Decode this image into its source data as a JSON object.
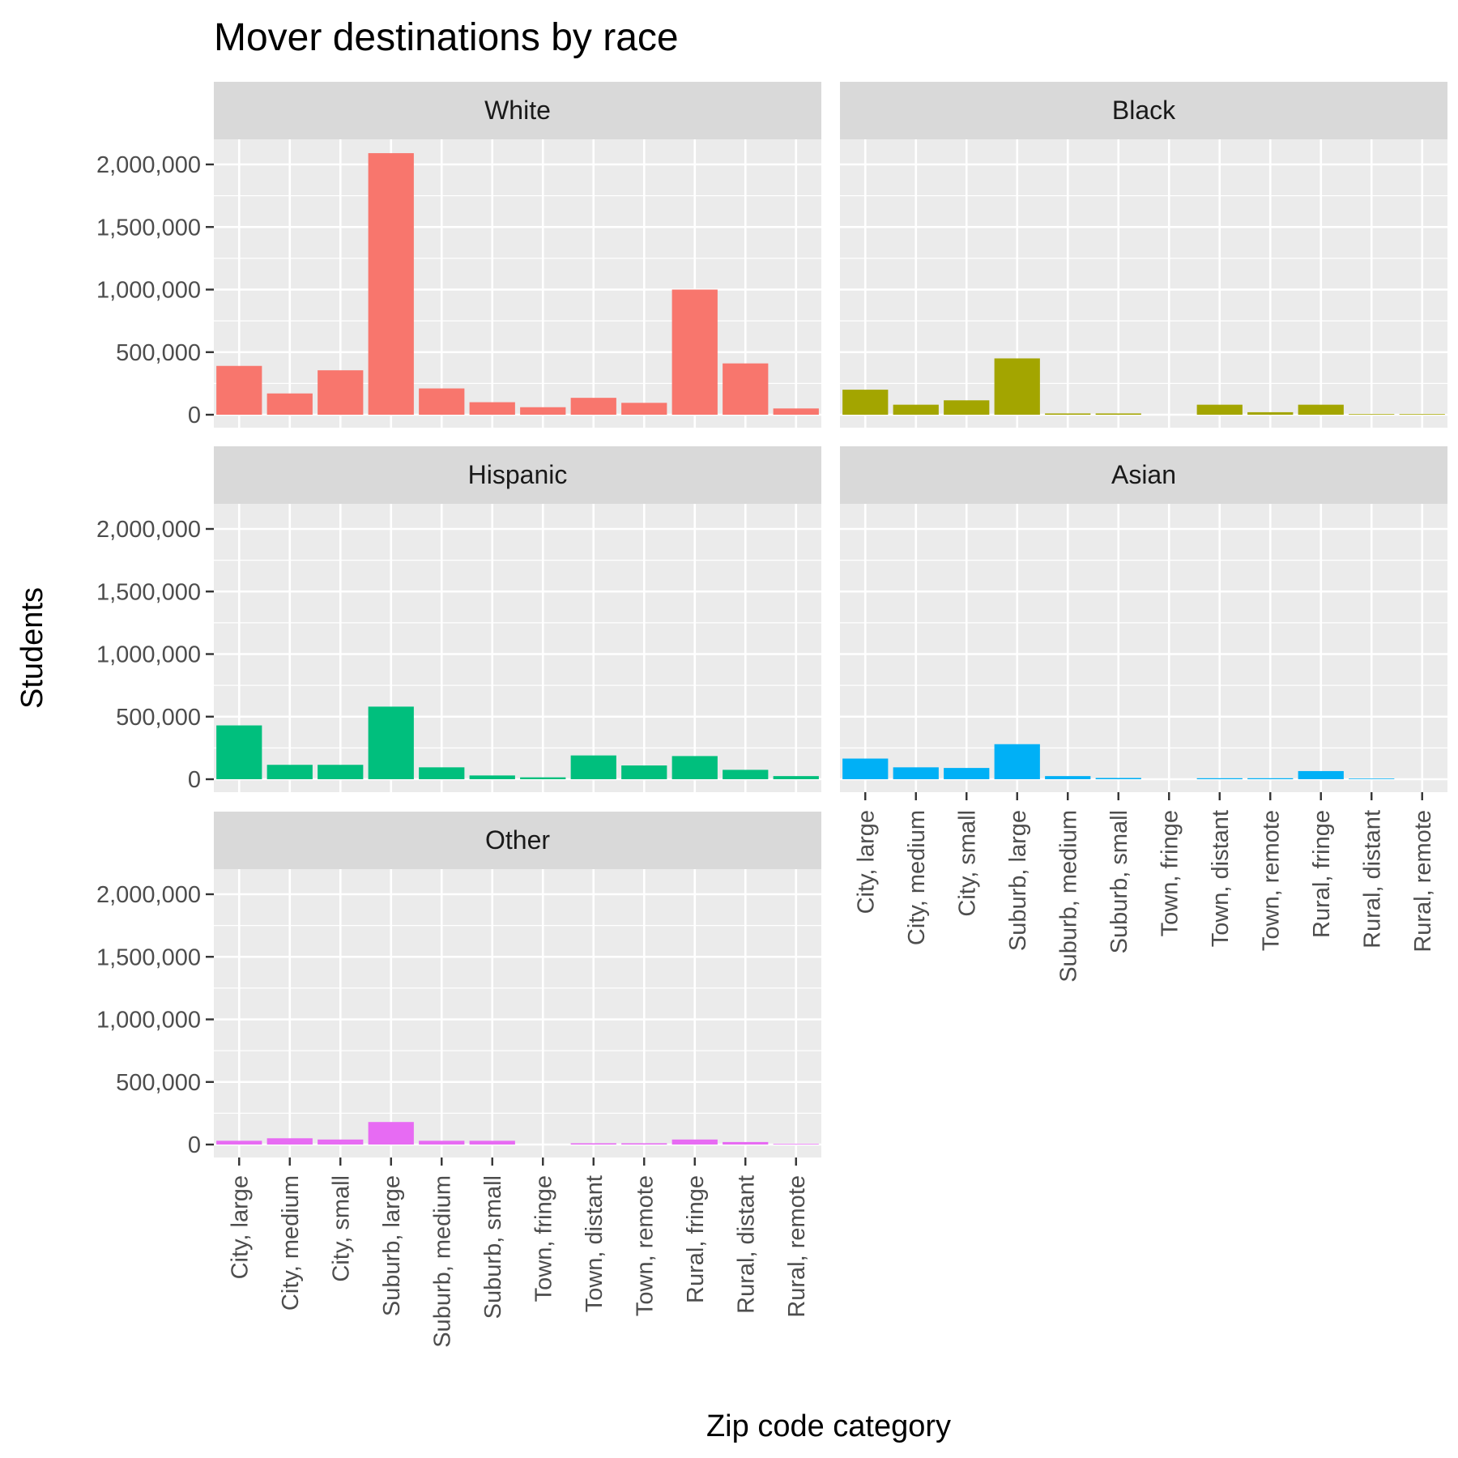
{
  "chart_data": {
    "type": "bar",
    "title": "Mover destinations by race",
    "xlabel": "Zip code category",
    "ylabel": "Students",
    "ylim": [
      0,
      2300000
    ],
    "yticks": [
      {
        "value": 0,
        "label": "0"
      },
      {
        "value": 500000,
        "label": "500,000"
      },
      {
        "value": 1000000,
        "label": "1,000,000"
      },
      {
        "value": 1500000,
        "label": "1,500,000"
      },
      {
        "value": 2000000,
        "label": "2,000,000"
      }
    ],
    "categories": [
      "City, large",
      "City, medium",
      "City, small",
      "Suburb, large",
      "Suburb, medium",
      "Suburb, small",
      "Town, fringe",
      "Town, distant",
      "Town, remote",
      "Rural, fringe",
      "Rural, distant",
      "Rural, remote"
    ],
    "grid": true,
    "facets": [
      {
        "name": "White",
        "color": "#F8766D",
        "values": [
          390000,
          170000,
          355000,
          2090000,
          210000,
          100000,
          60000,
          135000,
          95000,
          1000000,
          410000,
          50000
        ]
      },
      {
        "name": "Black",
        "color": "#A3A500",
        "values": [
          200000,
          80000,
          115000,
          450000,
          10000,
          10000,
          0,
          80000,
          20000,
          80000,
          5000,
          5000
        ]
      },
      {
        "name": "Hispanic",
        "color": "#00BF7D",
        "values": [
          430000,
          115000,
          115000,
          580000,
          95000,
          30000,
          15000,
          190000,
          110000,
          185000,
          75000,
          25000
        ]
      },
      {
        "name": "Asian",
        "color": "#00B0F6",
        "values": [
          165000,
          95000,
          90000,
          280000,
          25000,
          10000,
          0,
          8000,
          8000,
          65000,
          5000,
          0
        ]
      },
      {
        "name": "Other",
        "color": "#E76BF3",
        "values": [
          30000,
          50000,
          40000,
          180000,
          30000,
          30000,
          0,
          10000,
          10000,
          40000,
          20000,
          5000
        ]
      }
    ]
  }
}
